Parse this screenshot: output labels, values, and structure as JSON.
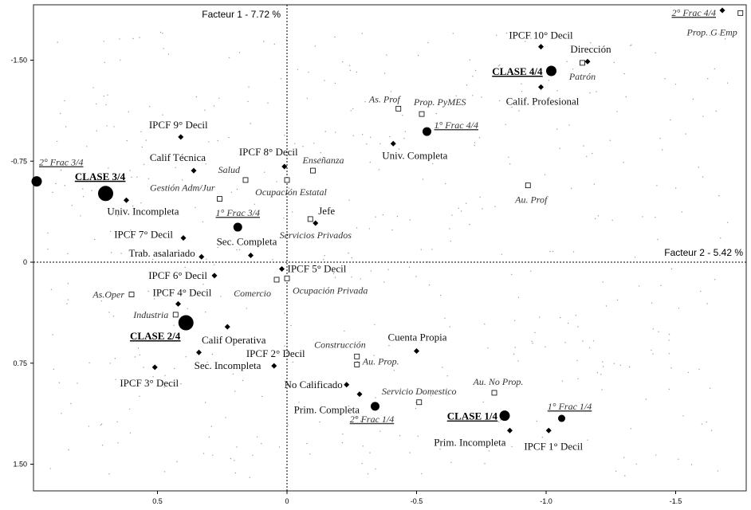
{
  "chart_data": {
    "type": "scatter",
    "factor1_label": "Facteur 1  -  7.72 %",
    "factor2_label": "Facteur 2  -  5.42 %",
    "x_axis": {
      "range": [
        1.0,
        -1.75
      ],
      "ticks": [
        0.5,
        0,
        -0.5,
        -1.0,
        -1.5
      ],
      "tick_labels": [
        "0.5",
        "0",
        "-0.5",
        "-1.0",
        "-1.5"
      ]
    },
    "y_axis": {
      "range": [
        -1.95,
        1.75
      ],
      "ticks": [
        -1.5,
        -0.75,
        0,
        0.75,
        1.5
      ],
      "tick_labels": [
        "-1.50",
        "-0.75",
        "0",
        "0.75",
        "1.50"
      ]
    },
    "grid": false,
    "points": [
      {
        "label": "IPCF 10° Decil",
        "x": -0.98,
        "y": -1.6,
        "marker": "diamond",
        "style": "plain",
        "anchor": "middle",
        "dx": 0,
        "dy": -10
      },
      {
        "label": "Dirección",
        "x": -1.16,
        "y": -1.49,
        "marker": "diamond",
        "style": "plain",
        "anchor": "middle",
        "dx": 4,
        "dy": -11
      },
      {
        "label": "CLASE 4/4",
        "x": -1.02,
        "y": -1.42,
        "marker": "circle-m",
        "style": "class",
        "anchor": "end",
        "dx": -11,
        "dy": 5
      },
      {
        "label": "Patrón",
        "x": -1.14,
        "y": -1.48,
        "marker": "square",
        "style": "italic",
        "anchor": "middle",
        "dx": 0,
        "dy": 21
      },
      {
        "label": "Calif. Profesional",
        "x": -0.98,
        "y": -1.3,
        "marker": "diamond",
        "style": "plain",
        "anchor": "middle",
        "dx": 2,
        "dy": 22
      },
      {
        "label": "Prop. G Emp",
        "x": -1.75,
        "y": -1.85,
        "marker": "square",
        "style": "italic",
        "anchor": "end",
        "dx": -4,
        "dy": 28
      },
      {
        "label": "2° Frac 4/4",
        "x": -1.68,
        "y": -1.87,
        "marker": "diamond",
        "style": "underline",
        "anchor": "end",
        "dx": -8,
        "dy": 7
      },
      {
        "label": "As. Prof",
        "x": -0.43,
        "y": -1.14,
        "marker": "square",
        "style": "italic",
        "anchor": "end",
        "dx": 2,
        "dy": -8
      },
      {
        "label": "Prop. PyMES",
        "x": -0.52,
        "y": -1.1,
        "marker": "square",
        "style": "italic",
        "anchor": "start",
        "dx": -10,
        "dy": -11
      },
      {
        "label": "1° Frac 4/4",
        "x": -0.54,
        "y": -0.97,
        "marker": "circle-s",
        "style": "underline",
        "anchor": "start",
        "dx": 9,
        "dy": -4
      },
      {
        "label": "Univ. Completa",
        "x": -0.41,
        "y": -0.88,
        "marker": "diamond",
        "style": "plain",
        "anchor": "start",
        "dx": -14,
        "dy": 19
      },
      {
        "label": "Au. Prof",
        "x": -0.93,
        "y": -0.57,
        "marker": "square",
        "style": "italic",
        "anchor": "middle",
        "dx": 4,
        "dy": 22
      },
      {
        "label": "IPCF 9° Decil",
        "x": 0.41,
        "y": -0.93,
        "marker": "diamond",
        "style": "plain",
        "anchor": "middle",
        "dx": -3,
        "dy": -11
      },
      {
        "label": "Calif Técnica",
        "x": 0.36,
        "y": -0.68,
        "marker": "diamond",
        "style": "plain",
        "anchor": "middle",
        "dx": -20,
        "dy": -12
      },
      {
        "label": "IPCF 8° Decil",
        "x": 0.01,
        "y": -0.71,
        "marker": "diamond",
        "style": "plain",
        "anchor": "middle",
        "dx": -20,
        "dy": -14
      },
      {
        "label": "Enseñanza",
        "x": -0.1,
        "y": -0.68,
        "marker": "square",
        "style": "italic",
        "anchor": "start",
        "dx": -13,
        "dy": -9
      },
      {
        "label": "Salud",
        "x": 0.16,
        "y": -0.61,
        "marker": "square",
        "style": "italic",
        "anchor": "end",
        "dx": -7,
        "dy": -9
      },
      {
        "label": "Ocupación Estatal",
        "x": 0.0,
        "y": -0.61,
        "marker": "square",
        "style": "italic",
        "anchor": "middle",
        "dx": 5,
        "dy": 19
      },
      {
        "label": "Gestión Adm/Jur",
        "x": 0.26,
        "y": -0.47,
        "marker": "square",
        "style": "italic",
        "anchor": "end",
        "dx": -6,
        "dy": -10
      },
      {
        "label": "2° Frac 3/4",
        "x": 0.97,
        "y": -0.6,
        "marker": "circle-m",
        "style": "underline",
        "anchor": "start",
        "dx": 3,
        "dy": -20
      },
      {
        "label": "CLASE 3/4",
        "x": 0.7,
        "y": -0.51,
        "marker": "circle-l",
        "style": "class",
        "anchor": "middle",
        "dx": -7,
        "dy": -17
      },
      {
        "label": "Univ. Incompleta",
        "x": 0.62,
        "y": -0.46,
        "marker": "diamond",
        "style": "plain",
        "anchor": "middle",
        "dx": 21,
        "dy": 18
      },
      {
        "label": "1° Frac 3/4",
        "x": 0.19,
        "y": -0.26,
        "marker": "circle-s",
        "style": "underline",
        "anchor": "middle",
        "dx": 0,
        "dy": -14
      },
      {
        "label": "Jefe",
        "x": -0.09,
        "y": -0.32,
        "marker": "square",
        "style": "plain",
        "anchor": "start",
        "dx": 10,
        "dy": -6
      },
      {
        "label": "Servicios Privados",
        "x": -0.11,
        "y": -0.29,
        "marker": "diamond",
        "style": "italic",
        "anchor": "middle",
        "dx": 0,
        "dy": 19
      },
      {
        "label": "IPCF 7° Decil",
        "x": 0.4,
        "y": -0.18,
        "marker": "diamond",
        "style": "plain",
        "anchor": "end",
        "dx": -13,
        "dy": 0
      },
      {
        "label": "Sec. Completa",
        "x": 0.14,
        "y": -0.05,
        "marker": "diamond",
        "style": "plain",
        "anchor": "middle",
        "dx": -5,
        "dy": -13
      },
      {
        "label": "Trab. asalariado",
        "x": 0.33,
        "y": -0.04,
        "marker": "diamond",
        "style": "plain",
        "anchor": "end",
        "dx": -8,
        "dy": 0
      },
      {
        "label": "IPCF 5° Decil",
        "x": 0.02,
        "y": 0.05,
        "marker": "diamond",
        "style": "plain",
        "anchor": "start",
        "dx": 7,
        "dy": 4
      },
      {
        "label": "IPCF 6° Decil",
        "x": 0.28,
        "y": 0.1,
        "marker": "diamond",
        "style": "plain",
        "anchor": "end",
        "dx": -9,
        "dy": 4
      },
      {
        "label": "Ocupación Privada",
        "x": 0.0,
        "y": 0.12,
        "marker": "square",
        "style": "italic",
        "anchor": "start",
        "dx": 7,
        "dy": 19
      },
      {
        "label": "Comercio",
        "x": 0.04,
        "y": 0.13,
        "marker": "square",
        "style": "italic",
        "anchor": "end",
        "dx": -7,
        "dy": 21
      },
      {
        "label": "As.Oper",
        "x": 0.6,
        "y": 0.24,
        "marker": "square",
        "style": "italic",
        "anchor": "end",
        "dx": -9,
        "dy": 4
      },
      {
        "label": "IPCF 4° Decil",
        "x": 0.42,
        "y": 0.31,
        "marker": "diamond",
        "style": "plain",
        "anchor": "start",
        "dx": -32,
        "dy": -10
      },
      {
        "label": "Industria",
        "x": 0.43,
        "y": 0.39,
        "marker": "square",
        "style": "italic",
        "anchor": "end",
        "dx": -9,
        "dy": 4
      },
      {
        "label": "CLASE 2/4",
        "x": 0.39,
        "y": 0.45,
        "marker": "circle-l",
        "style": "class",
        "anchor": "end",
        "dx": -7,
        "dy": 21
      },
      {
        "label": "Calif Operativa",
        "x": 0.23,
        "y": 0.48,
        "marker": "diamond",
        "style": "plain",
        "anchor": "middle",
        "dx": 8,
        "dy": 21
      },
      {
        "label": "Sec. Incompleta",
        "x": 0.34,
        "y": 0.67,
        "marker": "diamond",
        "style": "plain",
        "anchor": "middle",
        "dx": 36,
        "dy": 21
      },
      {
        "label": "IPCF 3° Decil",
        "x": 0.51,
        "y": 0.78,
        "marker": "diamond",
        "style": "plain",
        "anchor": "middle",
        "dx": -7,
        "dy": 24
      },
      {
        "label": "IPCF 2° Decil",
        "x": 0.05,
        "y": 0.77,
        "marker": "diamond",
        "style": "plain",
        "anchor": "middle",
        "dx": 2,
        "dy": -11
      },
      {
        "label": "Construcción",
        "x": -0.27,
        "y": 0.7,
        "marker": "square",
        "style": "italic",
        "anchor": "end",
        "dx": 11,
        "dy": -11
      },
      {
        "label": "Au. Prop.",
        "x": -0.27,
        "y": 0.76,
        "marker": "square",
        "style": "italic",
        "anchor": "start",
        "dx": 7,
        "dy": 0
      },
      {
        "label": "Cuenta Propia",
        "x": -0.5,
        "y": 0.66,
        "marker": "diamond",
        "style": "plain",
        "anchor": "middle",
        "dx": 1,
        "dy": -13
      },
      {
        "label": "No Calificado",
        "x": -0.23,
        "y": 0.91,
        "marker": "diamond",
        "style": "plain",
        "anchor": "end",
        "dx": -5,
        "dy": 4
      },
      {
        "label": "Servicio Domestico",
        "x": -0.51,
        "y": 1.04,
        "marker": "square",
        "style": "italic",
        "anchor": "middle",
        "dx": 0,
        "dy": -10
      },
      {
        "label": "Prim. Completa",
        "x": -0.28,
        "y": 0.98,
        "marker": "diamond",
        "style": "plain",
        "anchor": "end",
        "dx": 0,
        "dy": 24
      },
      {
        "label": "2° Frac 1/4",
        "x": -0.34,
        "y": 1.07,
        "marker": "circle-s",
        "style": "underline",
        "anchor": "middle",
        "dx": -4,
        "dy": 20
      },
      {
        "label": "Au. No Prop.",
        "x": -0.8,
        "y": 0.97,
        "marker": "square",
        "style": "italic",
        "anchor": "middle",
        "dx": 5,
        "dy": -10
      },
      {
        "label": "1° Frac 1/4",
        "x": -1.06,
        "y": 1.16,
        "marker": "circle-xs",
        "style": "underline",
        "anchor": "middle",
        "dx": 10,
        "dy": -11
      },
      {
        "label": "CLASE 1/4",
        "x": -0.84,
        "y": 1.14,
        "marker": "circle-m",
        "style": "class",
        "anchor": "end",
        "dx": -9,
        "dy": 5
      },
      {
        "label": "Prim. Incompleta",
        "x": -0.86,
        "y": 1.25,
        "marker": "diamond",
        "style": "plain",
        "anchor": "end",
        "dx": -5,
        "dy": 19
      },
      {
        "label": "IPCF 1° Decil",
        "x": -1.01,
        "y": 1.25,
        "marker": "diamond",
        "style": "plain",
        "anchor": "middle",
        "dx": 6,
        "dy": 24
      }
    ]
  }
}
